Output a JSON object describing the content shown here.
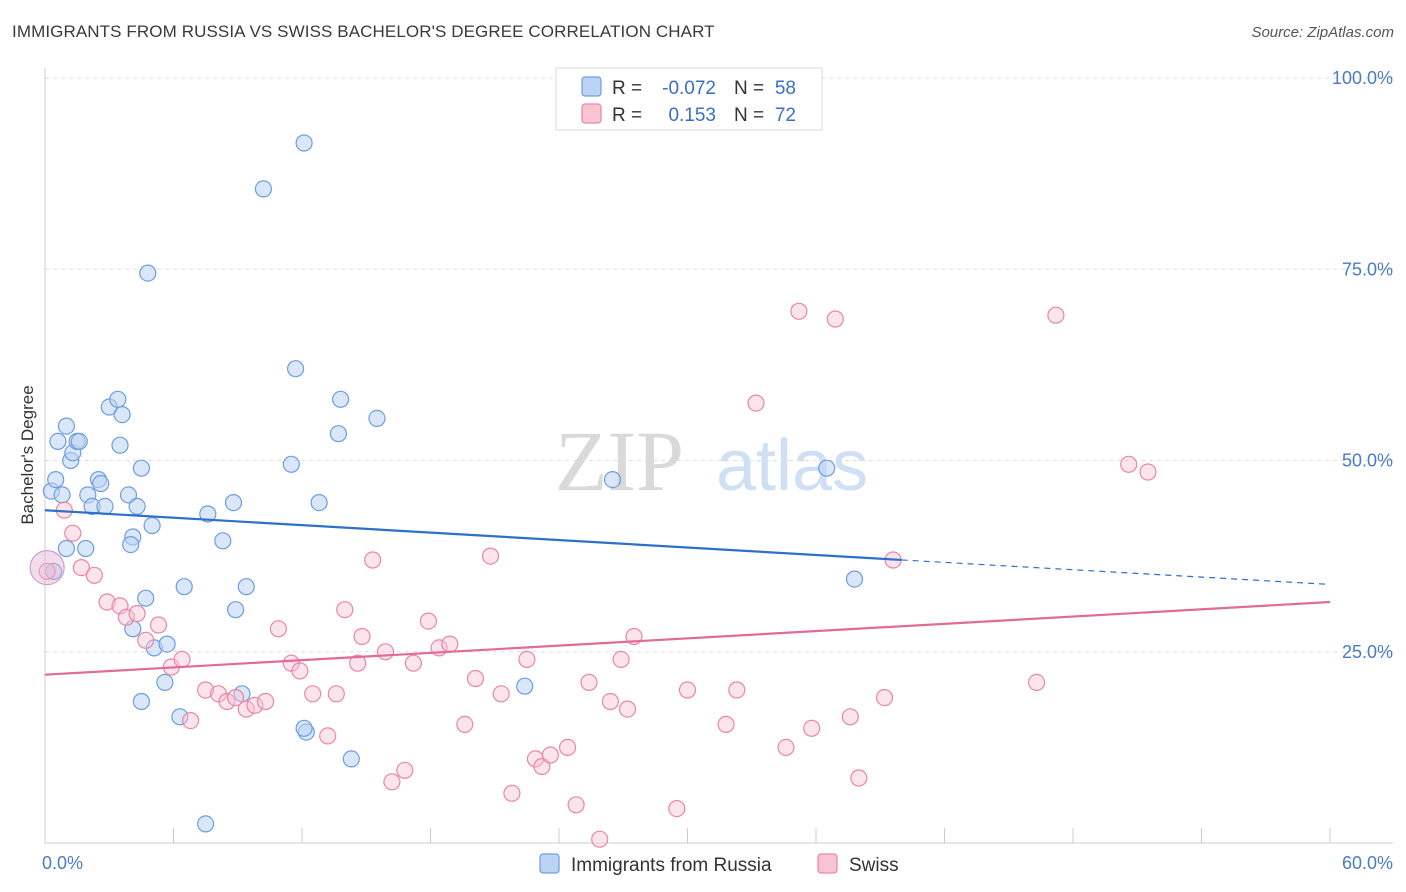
{
  "title": "IMMIGRANTS FROM RUSSIA VS SWISS BACHELOR'S DEGREE CORRELATION CHART",
  "source": "Source: ZipAtlas.com",
  "chart_data": {
    "type": "scatter",
    "ylabel": "Bachelor's Degree",
    "xlim": [
      0,
      60
    ],
    "ylim": [
      0,
      100
    ],
    "x_tick_labels": [
      "0.0%",
      "60.0%"
    ],
    "y_ticks": [
      25,
      50,
      75,
      100
    ],
    "y_tick_labels": [
      "25.0%",
      "50.0%",
      "75.0%",
      "100.0%"
    ],
    "watermark": "ZIPatlas",
    "legend": {
      "r_label": "R =",
      "n_label": "N =",
      "entries": [
        {
          "name": "Immigrants from Russia",
          "r": "-0.072",
          "n": "58",
          "color": "#6d9de0",
          "fill": "#bcd4f4"
        },
        {
          "name": "Swiss",
          "r": "0.153",
          "n": "72",
          "color": "#e986a8",
          "fill": "#f8c4d4"
        }
      ]
    },
    "series": [
      {
        "name": "Immigrants from Russia",
        "color": "#6d9de0",
        "trend": {
          "x0": 0,
          "y0": 43.5,
          "x1": 40,
          "y1": 37.0,
          "dash_to_x": 60,
          "dash_to_y": 33.8
        },
        "points": [
          [
            0.3,
            46
          ],
          [
            0.5,
            47.5
          ],
          [
            0.8,
            45.5
          ],
          [
            0.6,
            52.5
          ],
          [
            1.0,
            54.5
          ],
          [
            1.2,
            50
          ],
          [
            1.3,
            51
          ],
          [
            1.5,
            52.5
          ],
          [
            1.6,
            52.5
          ],
          [
            2.0,
            45.5
          ],
          [
            2.2,
            44
          ],
          [
            2.5,
            47.5
          ],
          [
            2.6,
            47
          ],
          [
            2.8,
            44
          ],
          [
            3.0,
            57
          ],
          [
            3.4,
            58
          ],
          [
            3.6,
            56
          ],
          [
            3.5,
            52
          ],
          [
            3.9,
            45.5
          ],
          [
            4.3,
            44
          ],
          [
            4.5,
            49
          ],
          [
            4.1,
            40
          ],
          [
            4.0,
            39
          ],
          [
            1.9,
            38.5
          ],
          [
            5.0,
            41.5
          ],
          [
            4.7,
            32
          ],
          [
            4.1,
            28
          ],
          [
            5.1,
            25.5
          ],
          [
            5.7,
            26
          ],
          [
            5.6,
            21
          ],
          [
            4.5,
            18.5
          ],
          [
            6.5,
            33.5
          ],
          [
            6.3,
            16.5
          ],
          [
            7.6,
            43
          ],
          [
            8.3,
            39.5
          ],
          [
            8.8,
            44.5
          ],
          [
            8.9,
            30.5
          ],
          [
            9.4,
            33.5
          ],
          [
            9.2,
            19.5
          ],
          [
            11.7,
            62
          ],
          [
            11.5,
            49.5
          ],
          [
            12.8,
            44.5
          ],
          [
            12.2,
            14.5
          ],
          [
            12.1,
            15
          ],
          [
            13.8,
            58
          ],
          [
            13.7,
            53.5
          ],
          [
            14.3,
            11
          ],
          [
            15.5,
            55.5
          ],
          [
            10.2,
            85.5
          ],
          [
            12.1,
            91.5
          ],
          [
            4.8,
            74.5
          ],
          [
            26.5,
            47.5
          ],
          [
            36.5,
            49
          ],
          [
            37.8,
            34.5
          ],
          [
            22.4,
            20.5
          ],
          [
            7.5,
            2.5
          ],
          [
            1.0,
            38.5
          ],
          [
            0.4,
            35.5
          ]
        ]
      },
      {
        "name": "Swiss",
        "color": "#e986a8",
        "trend": {
          "x0": 0,
          "y0": 22.0,
          "x1": 60,
          "y1": 31.5
        },
        "points": [
          [
            0.1,
            35.5
          ],
          [
            0.9,
            43.5
          ],
          [
            1.3,
            40.5
          ],
          [
            1.7,
            36
          ],
          [
            2.3,
            35
          ],
          [
            2.9,
            31.5
          ],
          [
            3.5,
            31
          ],
          [
            3.8,
            29.5
          ],
          [
            4.3,
            30
          ],
          [
            4.7,
            26.5
          ],
          [
            5.3,
            28.5
          ],
          [
            5.9,
            23
          ],
          [
            6.4,
            24
          ],
          [
            6.8,
            16
          ],
          [
            7.5,
            20
          ],
          [
            8.1,
            19.5
          ],
          [
            8.5,
            18.5
          ],
          [
            8.9,
            19
          ],
          [
            9.4,
            17.5
          ],
          [
            9.8,
            18
          ],
          [
            10.3,
            18.5
          ],
          [
            10.9,
            28
          ],
          [
            11.5,
            23.5
          ],
          [
            11.9,
            22.5
          ],
          [
            12.5,
            19.5
          ],
          [
            13.2,
            14
          ],
          [
            13.6,
            19.5
          ],
          [
            14.0,
            30.5
          ],
          [
            14.6,
            23.5
          ],
          [
            14.8,
            27
          ],
          [
            15.3,
            37
          ],
          [
            15.9,
            25
          ],
          [
            16.2,
            8
          ],
          [
            16.8,
            9.5
          ],
          [
            17.2,
            23.5
          ],
          [
            17.9,
            29
          ],
          [
            18.4,
            25.5
          ],
          [
            18.9,
            26
          ],
          [
            19.6,
            15.5
          ],
          [
            20.1,
            21.5
          ],
          [
            20.8,
            37.5
          ],
          [
            21.3,
            19.5
          ],
          [
            21.8,
            6.5
          ],
          [
            22.5,
            24
          ],
          [
            22.9,
            11
          ],
          [
            23.2,
            10
          ],
          [
            23.6,
            11.5
          ],
          [
            24.4,
            12.5
          ],
          [
            24.8,
            5
          ],
          [
            25.4,
            21
          ],
          [
            25.9,
            0.5
          ],
          [
            26.4,
            18.5
          ],
          [
            26.9,
            24
          ],
          [
            27.2,
            17.5
          ],
          [
            27.5,
            27
          ],
          [
            29.5,
            4.5
          ],
          [
            30.0,
            20
          ],
          [
            31.8,
            15.5
          ],
          [
            32.3,
            20
          ],
          [
            33.2,
            57.5
          ],
          [
            34.6,
            12.5
          ],
          [
            35.2,
            69.5
          ],
          [
            35.8,
            15
          ],
          [
            36.9,
            68.5
          ],
          [
            37.6,
            16.5
          ],
          [
            38.0,
            8.5
          ],
          [
            39.2,
            19
          ],
          [
            39.6,
            37
          ],
          [
            46.3,
            21
          ],
          [
            47.2,
            69
          ],
          [
            50.6,
            49.5
          ],
          [
            51.5,
            48.5
          ]
        ]
      }
    ]
  }
}
